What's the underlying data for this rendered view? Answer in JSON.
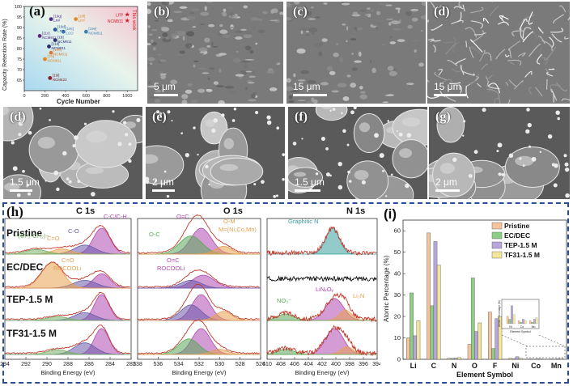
{
  "panel_a": {
    "label": "(a)",
    "ylabel": "Capacity Retention Rate (%)",
    "xlabel": "Cycle Number",
    "this_work": "This work",
    "points": [
      {
        "ref": "[19g]",
        "name": "LFP",
        "x": 260,
        "y": 94,
        "color": "#4b2c8a"
      },
      {
        "ref": "[19f]",
        "name": "LFP",
        "x": 500,
        "y": 94,
        "color": "#e08a2a"
      },
      {
        "ref": "[19c]",
        "name": "LCO",
        "x": 380,
        "y": 88,
        "color": "#3c73b6"
      },
      {
        "ref": "[19e]",
        "name": "NCM811",
        "x": 600,
        "y": 88,
        "color": "#3a86b0"
      },
      {
        "ref": "[19d]",
        "name": "LFP",
        "x": 300,
        "y": 89,
        "color": "#1f5a8a"
      },
      {
        "ref": "[11c]",
        "name": "NCM811",
        "x": 150,
        "y": 86,
        "color": "#5b2c7c"
      },
      {
        "ref": "[1b]",
        "name": "NCM811",
        "x": 300,
        "y": 84,
        "color": "#2c2c6c"
      },
      {
        "ref": "[11a]",
        "name": "NCM811",
        "x": 240,
        "y": 81,
        "color": "#2c2c6c"
      },
      {
        "ref": "[19b]",
        "name": "NCM811",
        "x": 260,
        "y": 78,
        "color": "#e07a30"
      },
      {
        "ref": "[19i]",
        "name": "NCM811",
        "x": 200,
        "y": 75,
        "color": "#e08a2a"
      },
      {
        "ref": "[19i]",
        "name": "NCM622",
        "x": 250,
        "y": 66,
        "color": "#8a2020"
      },
      {
        "ref": "",
        "name": "LFP",
        "x": 1000,
        "y": 96,
        "color": "#d02020"
      },
      {
        "ref": "",
        "name": "NCM811",
        "x": 1000,
        "y": 93,
        "color": "#d02020"
      }
    ]
  },
  "sem_panels": [
    {
      "label": "(b)",
      "scale": "5 μm"
    },
    {
      "label": "(c)",
      "scale": "15 μm"
    },
    {
      "label": "(d)",
      "scale": "15 μm"
    },
    {
      "label": "(d)",
      "scale": "1.5 μm"
    },
    {
      "label": "(e)",
      "scale": "2 μm"
    },
    {
      "label": "(f)",
      "scale": "1.5 μm"
    },
    {
      "label": "(g)",
      "scale": "2 μm"
    }
  ],
  "panel_h": {
    "label": "(h)",
    "rows": [
      "Pristine",
      "EC/DEC",
      "TEP-1.5 M",
      "TF31-1.5 M"
    ],
    "c1s": {
      "title": "C 1s",
      "xlabel": "Binding Energy (eV)",
      "ticks": [
        "294",
        "292",
        "290",
        "288",
        "286",
        "284",
        "282"
      ],
      "annotations": [
        "−(CF₂-CH₂)−",
        "C=O",
        "C-O",
        "C-C/C-H",
        "C=O",
        "ROCOOLi"
      ]
    },
    "o1s": {
      "title": "O 1s",
      "xlabel": "Binding Energy (eV)",
      "ticks": [
        "538",
        "536",
        "534",
        "532",
        "530",
        "528",
        "526"
      ],
      "annotations": [
        "O=C",
        "O-C",
        "O-M",
        "M=(Ni,Co,Mn)",
        "O=C",
        "ROCOOLi"
      ]
    },
    "n1s": {
      "title": "N 1s",
      "xlabel": "Binding Energy (eV)",
      "ticks": [
        "410",
        "408",
        "406",
        "404",
        "402",
        "400",
        "398",
        "396",
        "394"
      ],
      "annotations": [
        "Graphitic N",
        "NO₃⁻",
        "LiNₓOᵧ",
        "Li₃N"
      ]
    }
  },
  "panel_i": {
    "label": "(i)",
    "chart_data": {
      "type": "bar",
      "categories": [
        "Li",
        "C",
        "N",
        "O",
        "F",
        "Ni",
        "Co",
        "Mn"
      ],
      "xlabel": "Element Symbol",
      "ylabel": "Atomic Percentage (%)",
      "ylim": [
        0,
        65
      ],
      "yticks": [
        "0",
        "10",
        "20",
        "30",
        "40",
        "50",
        "60"
      ],
      "legend_position": "top-right",
      "series": [
        {
          "name": "Pristine",
          "color": "#f6c39a",
          "values": [
            10,
            59,
            0.5,
            7,
            22,
            0.5,
            0.2,
            0.2
          ]
        },
        {
          "name": "EC/DEC",
          "color": "#8ccf84",
          "values": [
            31,
            25,
            0.5,
            38,
            5,
            0.3,
            0.1,
            0.1
          ]
        },
        {
          "name": "TEP-1.5 M",
          "color": "#b6a6dc",
          "values": [
            11,
            55,
            0.6,
            13,
            19,
            1.2,
            0.3,
            0.3
          ]
        },
        {
          "name": "TF31-1.5 M",
          "color": "#f3e59a",
          "values": [
            18,
            44,
            0.8,
            17,
            20,
            0.6,
            0.2,
            0.4
          ]
        }
      ],
      "inset": {
        "xlabel": "Element Symbol",
        "ylabel": "Atomic Percentage (%)",
        "categories": [
          "Ni",
          "Co",
          "Mn"
        ]
      }
    }
  }
}
